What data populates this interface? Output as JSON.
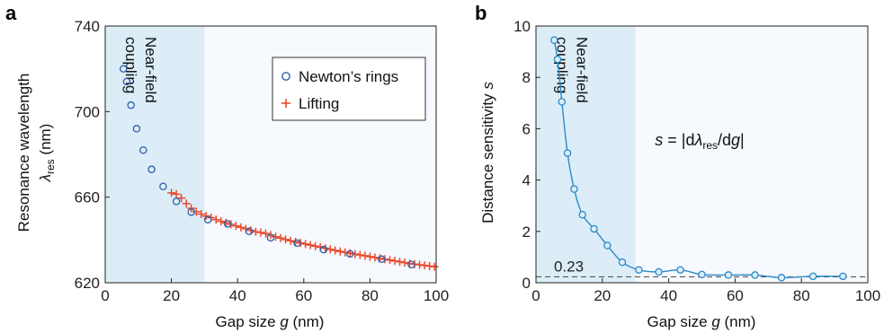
{
  "colors": {
    "near_field_shade": "#dcedf8",
    "plot_bg": "#f6f9fd",
    "newton": "#2f5fa7",
    "lifting": "#e8492d",
    "sensitivity": "#2a8ac8",
    "dashed": "#555555"
  },
  "chart_data": [
    {
      "panel": "a",
      "type": "scatter",
      "xlabel_main": "Gap size ",
      "xlabel_var": "g",
      "xlabel_unit": " (nm)",
      "ylabel_line1": "Resonance wavelength",
      "ylabel_var": "λ",
      "ylabel_sub": "res",
      "ylabel_unit": " (nm)",
      "xlim": [
        0,
        100
      ],
      "ylim": [
        620,
        740
      ],
      "xticks": [
        0,
        20,
        40,
        60,
        80,
        100
      ],
      "yticks": [
        620,
        660,
        700,
        740
      ],
      "region": {
        "x0": 0,
        "x1": 30,
        "label_line1": "Near-field",
        "label_line2": "coupling"
      },
      "legend_position": "top-right",
      "series": [
        {
          "name": "Newton’s rings",
          "marker": "circle",
          "x": [
            5.5,
            6.5,
            7.8,
            9.5,
            11.5,
            14,
            17.5,
            21.5,
            26,
            31,
            37,
            43.5,
            50,
            58,
            66,
            74,
            83.5,
            92.5
          ],
          "y": [
            720,
            714,
            703,
            692,
            682,
            673,
            665,
            658,
            653,
            649.5,
            647.5,
            644,
            641,
            638.5,
            635.5,
            633.5,
            631,
            628.5
          ]
        },
        {
          "name": "Lifting",
          "marker": "plus",
          "x": [
            20,
            21.5,
            23,
            24.5,
            26,
            27.5,
            29,
            30.5,
            32,
            33.5,
            35,
            36.5,
            38,
            39.5,
            41,
            42.5,
            44,
            45.5,
            47,
            48.5,
            50,
            51.5,
            53,
            54.5,
            56,
            57.5,
            59,
            60.5,
            62,
            63.5,
            65,
            66.5,
            68,
            69.5,
            71,
            72.5,
            74,
            75.5,
            77,
            78.5,
            80,
            81.5,
            83,
            84.5,
            86,
            87.5,
            89,
            90.5,
            92,
            93.5,
            95,
            96.5,
            98,
            99.5
          ],
          "y": [
            662,
            661.4,
            659.6,
            657,
            654.8,
            653.2,
            652.1,
            651.2,
            650.4,
            649.5,
            648.7,
            648,
            647.3,
            646.6,
            645.9,
            645.2,
            644.5,
            643.8,
            643.5,
            643,
            642.3,
            641.5,
            640.9,
            640.2,
            639.6,
            639.1,
            638.6,
            638.1,
            637.6,
            637.1,
            636.6,
            636.1,
            635.6,
            635.1,
            634.6,
            634.2,
            633.8,
            633.4,
            633,
            632.6,
            632.2,
            631.8,
            631.4,
            631,
            630.6,
            630.2,
            629.8,
            629.4,
            629,
            628.7,
            628.4,
            628.1,
            627.8,
            627.5
          ]
        }
      ]
    },
    {
      "panel": "b",
      "type": "line",
      "xlabel_main": "Gap size ",
      "xlabel_var": "g",
      "xlabel_unit": " (nm)",
      "ylabel_main": "Distance sensitivity ",
      "ylabel_var": "s",
      "xlim": [
        0,
        100
      ],
      "ylim": [
        0,
        10
      ],
      "xticks": [
        0,
        20,
        40,
        60,
        80,
        100
      ],
      "yticks": [
        0,
        2,
        4,
        6,
        8,
        10
      ],
      "region": {
        "x0": 0,
        "x1": 30,
        "label_line1": "Near-field",
        "label_line2": "coupling"
      },
      "formula": {
        "lhs": "s",
        "eq": " = |d",
        "lambda": "λ",
        "sub": "res",
        "rest": "/d",
        "g": "g",
        "end": "|"
      },
      "reference_line": {
        "y": 0.23,
        "label": "0.23"
      },
      "series": [
        {
          "marker": "circle",
          "x": [
            5.5,
            6.5,
            7.8,
            9.5,
            11.5,
            14,
            17.5,
            21.5,
            26,
            31,
            37,
            43.5,
            50,
            58,
            66,
            74,
            83.5,
            92.5
          ],
          "y": [
            9.45,
            8.7,
            7.05,
            5.05,
            3.65,
            2.65,
            2.1,
            1.45,
            0.8,
            0.5,
            0.42,
            0.5,
            0.32,
            0.3,
            0.3,
            0.2,
            0.25,
            0.25
          ]
        }
      ]
    }
  ]
}
